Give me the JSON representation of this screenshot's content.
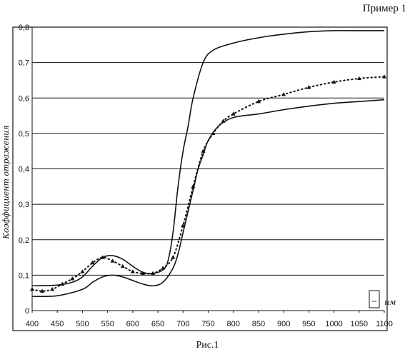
{
  "header": {
    "caption": "Пример 1"
  },
  "footer": {
    "caption": "Рис.1"
  },
  "chart_data": {
    "type": "line",
    "xlabel": "нм",
    "ylabel": "Коэффициент отражения",
    "xlim": [
      400,
      1100
    ],
    "ylim": [
      0,
      0.8
    ],
    "x_ticks": [
      "400",
      "450",
      "500",
      "550",
      "600",
      "650",
      "700",
      "750",
      "800",
      "850",
      "900",
      "950",
      "1000",
      "1050",
      "1100"
    ],
    "y_ticks": [
      "0",
      "0,1",
      "0,2",
      "0,3",
      "0,4",
      "0,5",
      "0,6",
      "0,7",
      "0,8"
    ],
    "grid": "horizontal",
    "legend_marker": "--",
    "series": [
      {
        "style": "solid",
        "x": [
          400,
          450,
          480,
          500,
          520,
          540,
          560,
          580,
          600,
          620,
          640,
          660,
          670,
          680,
          690,
          700,
          710,
          720,
          740,
          760,
          800,
          850,
          900,
          950,
          1000,
          1050,
          1100
        ],
        "y": [
          0.07,
          0.072,
          0.08,
          0.095,
          0.125,
          0.15,
          0.155,
          0.145,
          0.125,
          0.108,
          0.105,
          0.115,
          0.14,
          0.22,
          0.35,
          0.45,
          0.52,
          0.6,
          0.7,
          0.735,
          0.755,
          0.77,
          0.78,
          0.787,
          0.79,
          0.79,
          0.79
        ]
      },
      {
        "style": "solid",
        "x": [
          400,
          450,
          500,
          520,
          540,
          560,
          580,
          600,
          620,
          640,
          660,
          680,
          690,
          700,
          710,
          720,
          730,
          740,
          750,
          770,
          800,
          850,
          900,
          950,
          1000,
          1050,
          1100
        ],
        "y": [
          0.04,
          0.042,
          0.06,
          0.08,
          0.095,
          0.1,
          0.095,
          0.085,
          0.075,
          0.07,
          0.08,
          0.12,
          0.16,
          0.22,
          0.28,
          0.34,
          0.4,
          0.44,
          0.48,
          0.52,
          0.545,
          0.555,
          0.567,
          0.577,
          0.585,
          0.59,
          0.595
        ]
      },
      {
        "style": "dotted-triangles",
        "x": [
          400,
          420,
          440,
          460,
          480,
          500,
          520,
          540,
          560,
          580,
          600,
          620,
          640,
          660,
          680,
          700,
          720,
          740,
          760,
          780,
          800,
          850,
          900,
          950,
          1000,
          1050,
          1100
        ],
        "y": [
          0.06,
          0.055,
          0.06,
          0.075,
          0.09,
          0.11,
          0.135,
          0.15,
          0.14,
          0.125,
          0.11,
          0.105,
          0.105,
          0.12,
          0.15,
          0.24,
          0.35,
          0.45,
          0.5,
          0.535,
          0.555,
          0.59,
          0.61,
          0.63,
          0.645,
          0.655,
          0.66
        ]
      }
    ]
  }
}
